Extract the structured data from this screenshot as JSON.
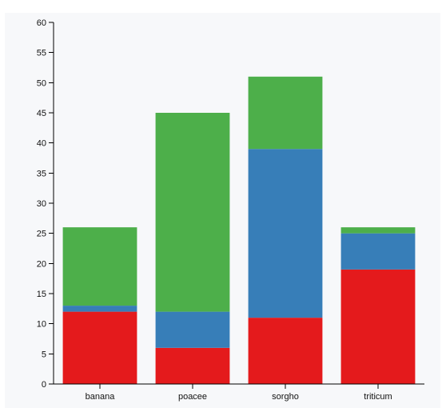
{
  "chart_data": {
    "type": "bar",
    "stacked": true,
    "categories": [
      "banana",
      "poacee",
      "sorgho",
      "triticum"
    ],
    "series": [
      {
        "values": [
          12,
          6,
          11,
          19
        ],
        "color": "#e41a1c"
      },
      {
        "values": [
          1,
          6,
          28,
          6
        ],
        "color": "#377eb8"
      },
      {
        "values": [
          13,
          33,
          12,
          1
        ],
        "color": "#4daf4a"
      }
    ],
    "ylim": [
      0,
      60
    ],
    "yticks": [
      0,
      5,
      10,
      15,
      20,
      25,
      30,
      35,
      40,
      45,
      50,
      55,
      60
    ],
    "grid": false,
    "background": "#f7f8fa"
  }
}
